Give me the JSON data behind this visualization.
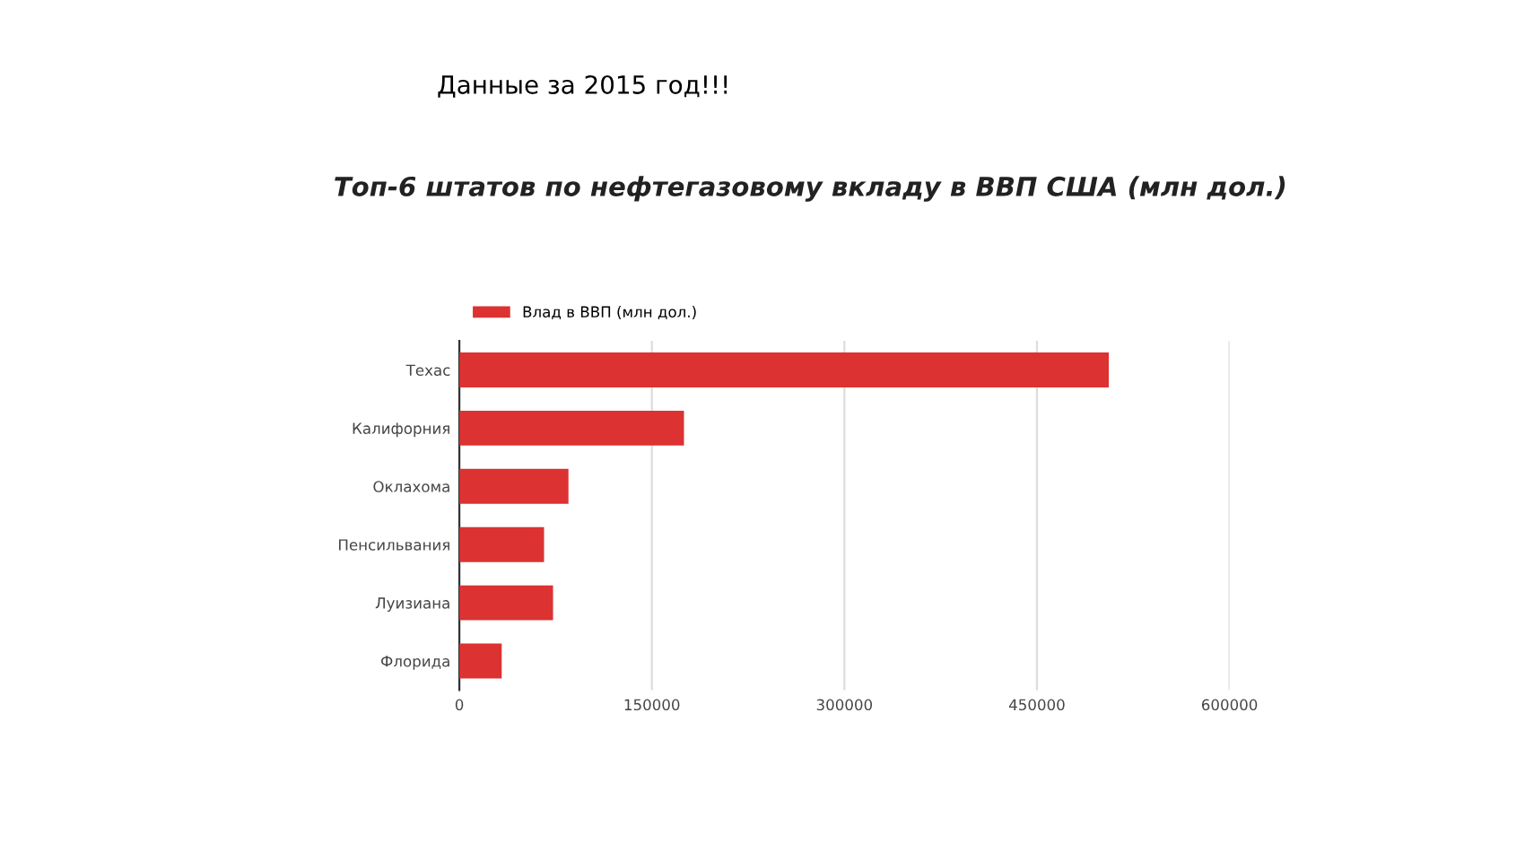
{
  "chart_data": {
    "type": "bar",
    "orientation": "horizontal",
    "title": "Топ-6 штатов по нефтегазовому вкладу в ВВП США (млн дол.)",
    "annotations": [
      "Данные за 2015 год!!!"
    ],
    "categories": [
      "Техас",
      "Калифорния",
      "Оклахома",
      "Пенсильвания",
      "Луизиана",
      "Флорида"
    ],
    "series": [
      {
        "name": "Влад в ВВП (млн дол.)",
        "color": "#dc3232",
        "values": [
          506000,
          175000,
          85000,
          66000,
          73000,
          33000
        ]
      }
    ],
    "xlim": [
      0,
      600000
    ],
    "xticks": [
      0,
      150000,
      300000,
      450000,
      600000
    ],
    "grid": "x",
    "legend": "top left"
  }
}
